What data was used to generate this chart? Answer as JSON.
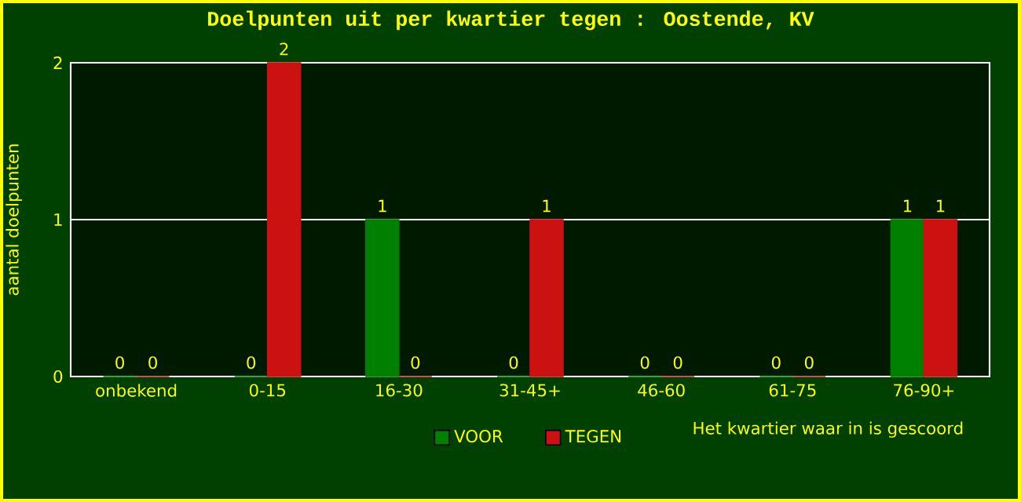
{
  "chart_data": {
    "type": "bar",
    "title": "Doelpunten uit per kwartier tegen : Oostende, KV",
    "xlabel": "Het kwartier waar in is gescoord",
    "ylabel": "aantal doelpunten",
    "categories": [
      "onbekend",
      "0-15",
      "16-30",
      "31-45+",
      "46-60",
      "61-75",
      "76-90+"
    ],
    "series": [
      {
        "name": "VOOR",
        "color": "#008000",
        "values": [
          0,
          0,
          1,
          0,
          0,
          0,
          1
        ]
      },
      {
        "name": "TEGEN",
        "color": "#cc1111",
        "values": [
          0,
          2,
          0,
          1,
          0,
          0,
          1
        ]
      }
    ],
    "ylim": [
      0,
      2
    ],
    "yticks": [
      0,
      1,
      2
    ],
    "grid": "y",
    "legend": "bottom",
    "data_labels": true
  }
}
